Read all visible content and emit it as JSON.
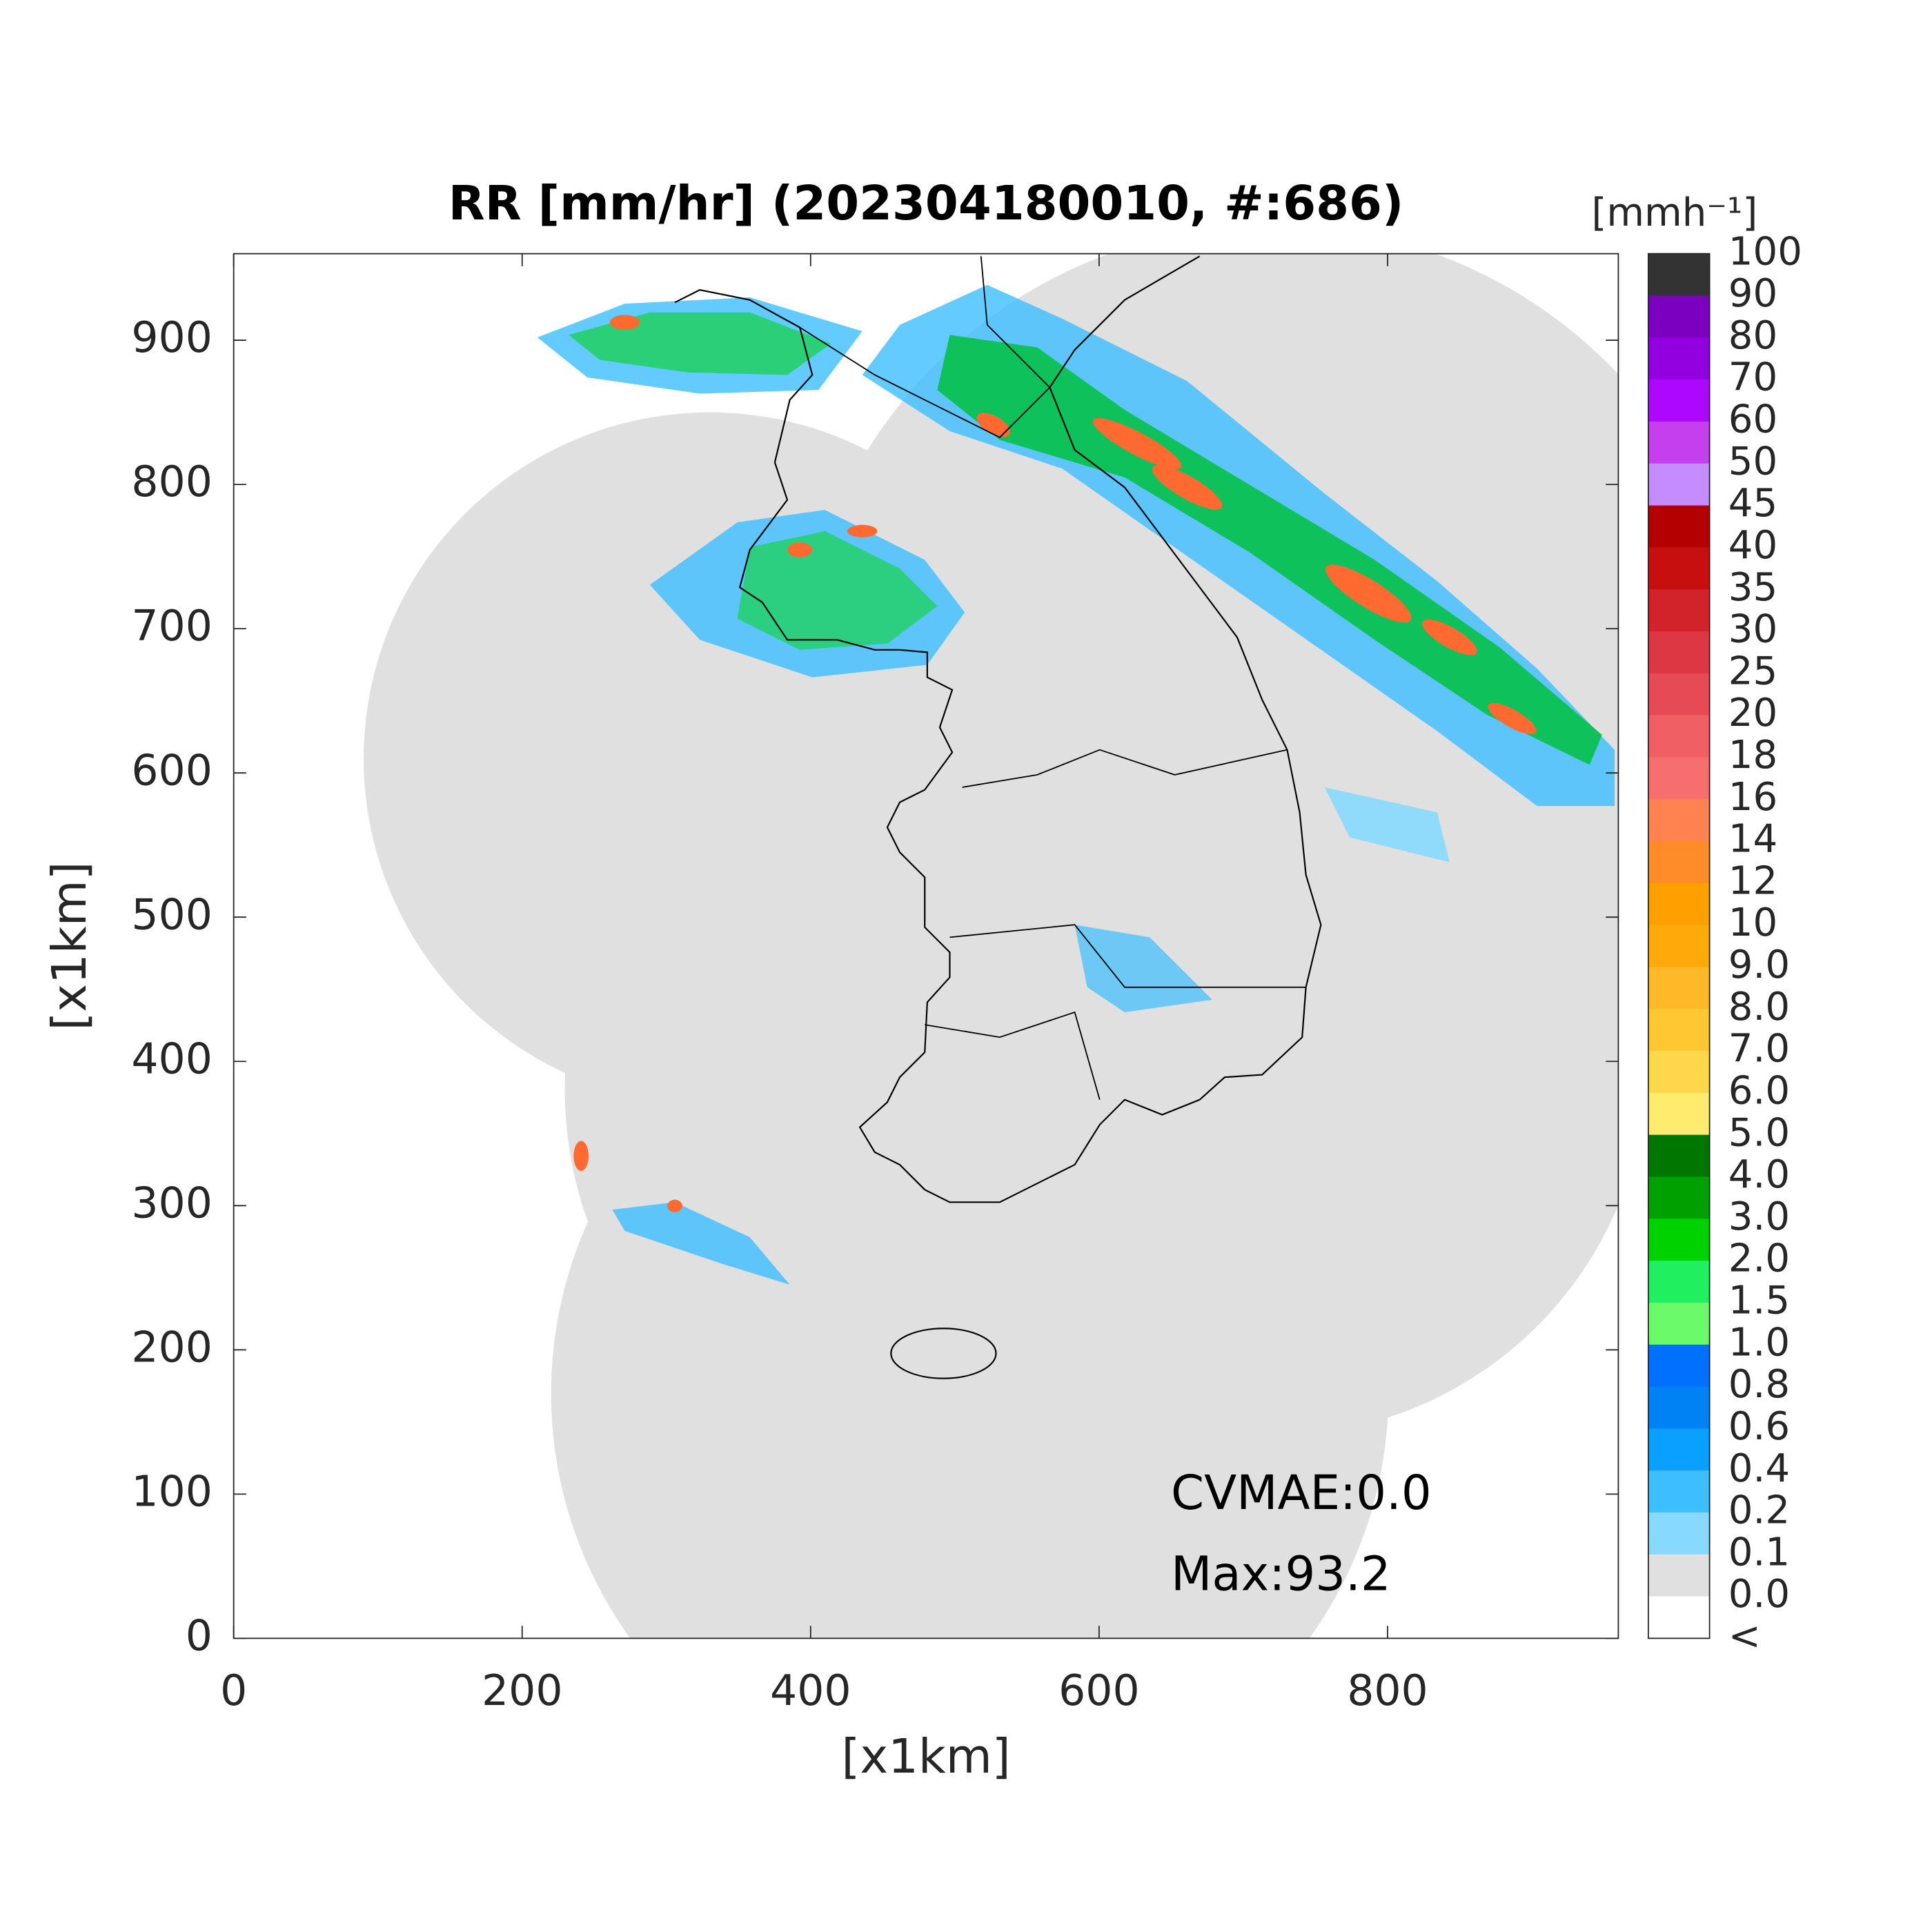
{
  "title": "RR [mm/hr] (202304180010, #:686)",
  "axes": {
    "xlabel": "[x1km]",
    "ylabel": "[x1km]",
    "xlim": [
      0,
      960
    ],
    "ylim": [
      0,
      960
    ],
    "xticks": [
      0,
      200,
      400,
      600,
      800
    ],
    "yticks": [
      0,
      100,
      200,
      300,
      400,
      500,
      600,
      700,
      800,
      900
    ]
  },
  "colorbar": {
    "title": "[mmh⁻¹]",
    "labels": [
      "100",
      "90",
      "80",
      "70",
      "60",
      "50",
      "45",
      "40",
      "35",
      "30",
      "25",
      "20",
      "18",
      "16",
      "14",
      "12",
      "10",
      "9.0",
      "8.0",
      "7.0",
      "6.0",
      "5.0",
      "4.0",
      "3.0",
      "2.0",
      "1.5",
      "1.0",
      "0.8",
      "0.6",
      "0.4",
      "0.2",
      "0.1",
      "0.0",
      "<"
    ],
    "colors": [
      "#333333",
      "#7c00bf",
      "#9200e0",
      "#ad07ff",
      "#c53fef",
      "#c58cff",
      "#b40000",
      "#c80f0f",
      "#d2232b",
      "#dc3743",
      "#e64b55",
      "#f05f64",
      "#f76e6e",
      "#ff8250",
      "#ff8c28",
      "#ffa000",
      "#ffaa0a",
      "#ffb928",
      "#ffc832",
      "#ffd74b",
      "#ffeb6e",
      "#007800",
      "#00a000",
      "#00d200",
      "#20f060",
      "#6afa6a",
      "#0070ff",
      "#0082f5",
      "#0aa0ff",
      "#3cbeff",
      "#87d9ff",
      "#e0e0e0",
      "#ffffff"
    ]
  },
  "annotations": [
    "CVMAE:0.0",
    "Max:93.2"
  ]
}
